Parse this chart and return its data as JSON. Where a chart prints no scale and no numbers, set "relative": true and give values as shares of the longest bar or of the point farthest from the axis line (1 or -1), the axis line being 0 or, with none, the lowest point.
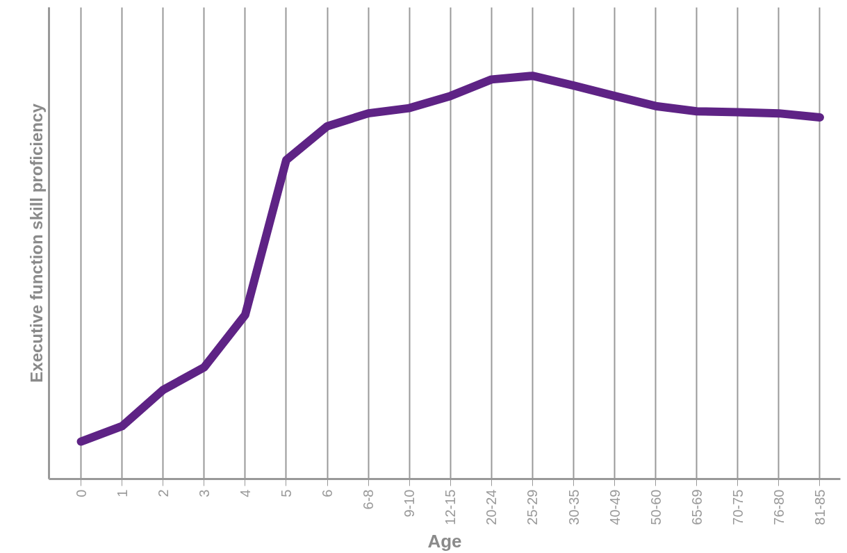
{
  "chart_data": {
    "type": "line",
    "relative": true,
    "xlabel": "Age",
    "ylabel": "Executive function skill proficiency",
    "categories": [
      "0",
      "1",
      "2",
      "3",
      "4",
      "5",
      "6",
      "6-8",
      "9-10",
      "12-15",
      "20-24",
      "25-29",
      "30-35",
      "40-49",
      "50-60",
      "65-69",
      "70-75",
      "76-80",
      "81-85"
    ],
    "series": [
      {
        "color": "#5e2385",
        "values": [
          0.093,
          0.131,
          0.221,
          0.277,
          0.407,
          0.791,
          0.875,
          0.907,
          0.92,
          0.95,
          0.991,
          1.0,
          0.976,
          0.95,
          0.925,
          0.912,
          0.91,
          0.907,
          0.897
        ]
      }
    ],
    "grid": "x",
    "marker": "none",
    "line_style": "solid"
  }
}
